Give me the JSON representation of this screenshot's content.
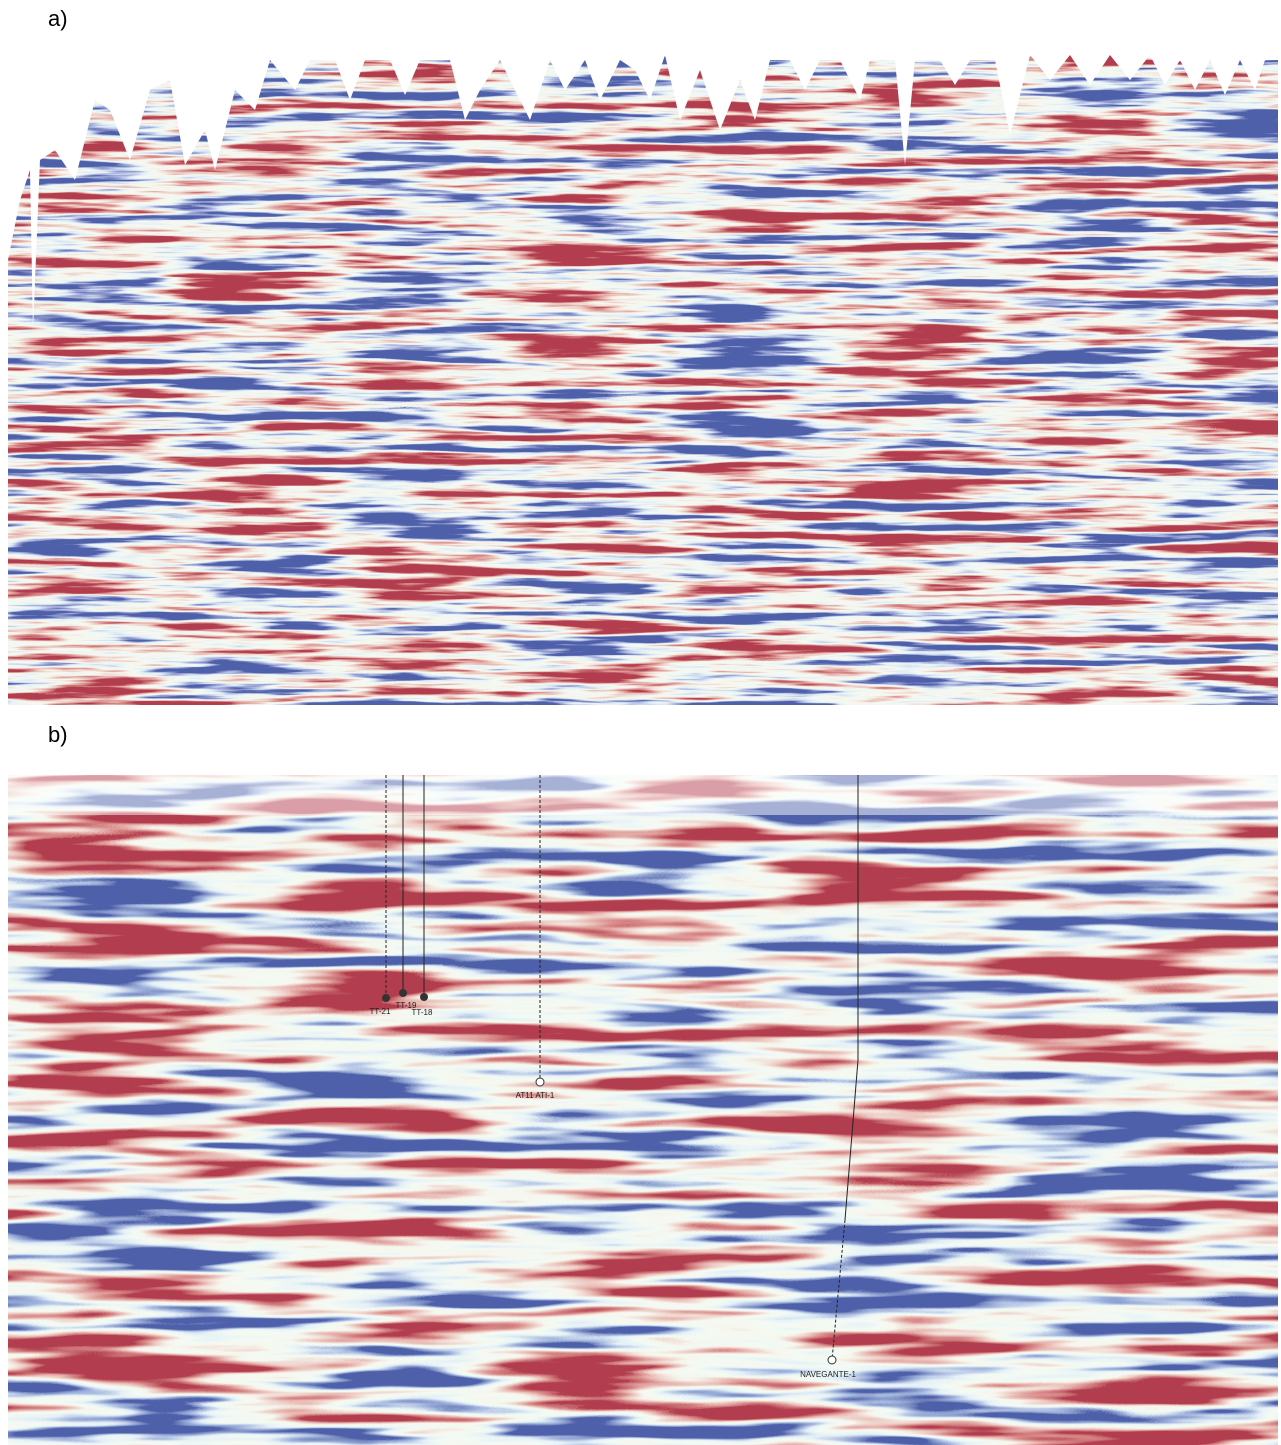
{
  "panels": [
    {
      "label": "a)"
    },
    {
      "label": "b)",
      "wells": [
        {
          "name": "TT-21"
        },
        {
          "name": "TT-19"
        },
        {
          "name": "TT-18"
        },
        {
          "name": "AT11 ATI-1"
        },
        {
          "name": "NAVEGANTE-1"
        }
      ]
    }
  ]
}
